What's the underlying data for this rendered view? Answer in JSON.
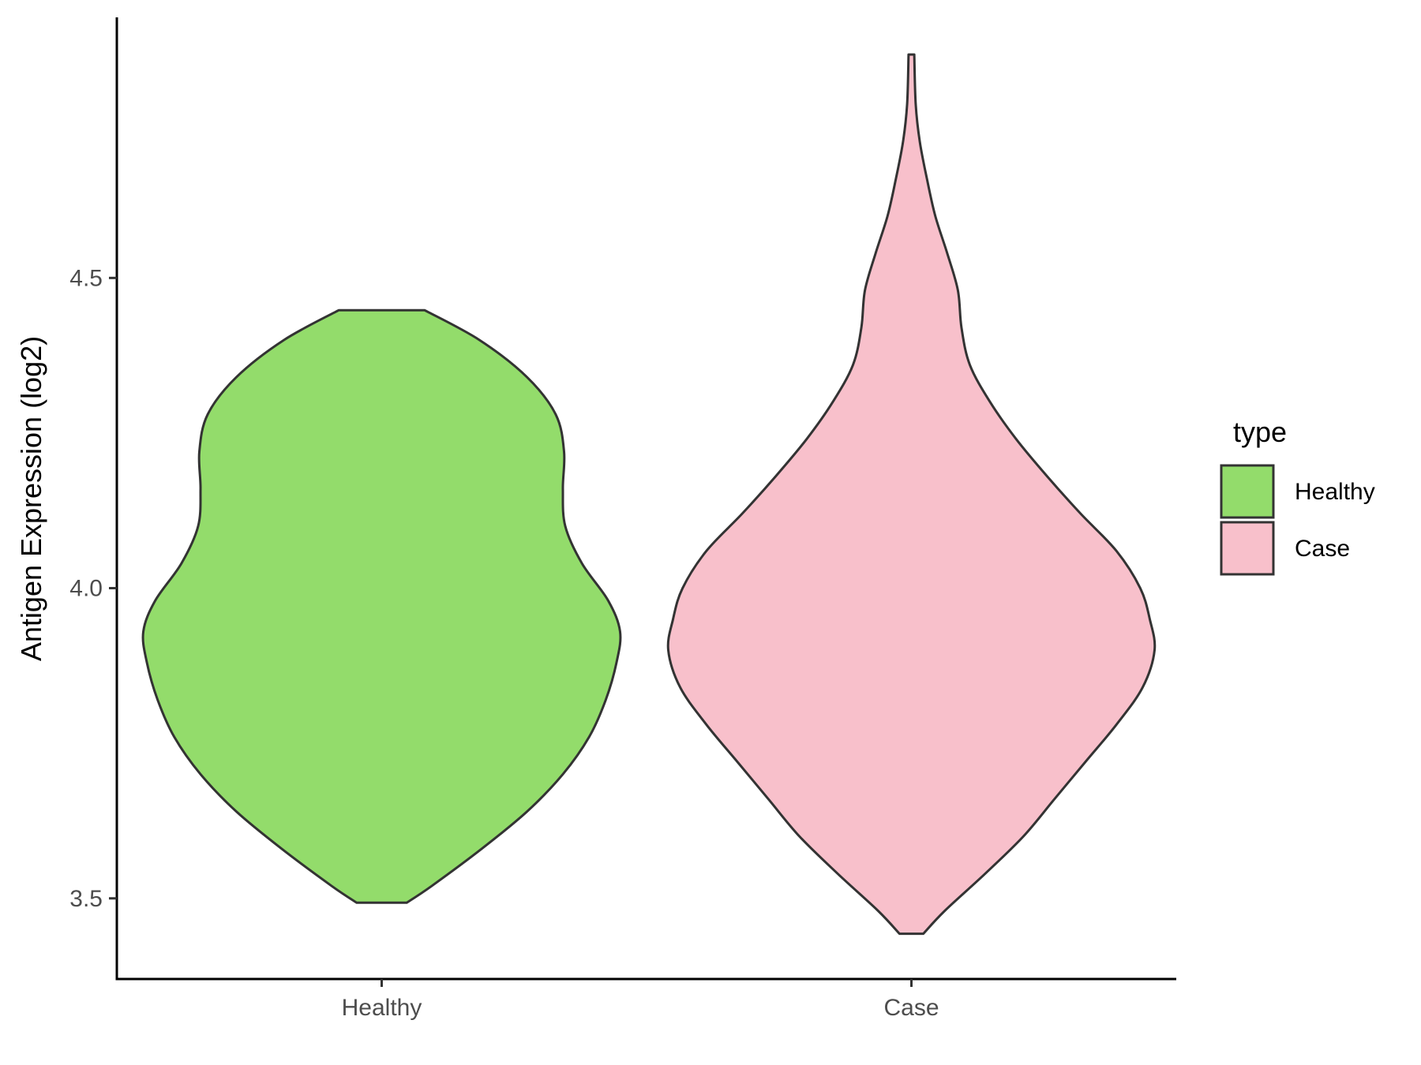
{
  "chart_data": {
    "type": "violin",
    "title": "",
    "xlabel": "",
    "ylabel": "Antigen Expression (log2)",
    "ylim": [
      3.37,
      4.92
    ],
    "yticks": [
      3.5,
      4.0,
      4.5
    ],
    "ytick_labels": [
      "3.5",
      "4.0",
      "4.5"
    ],
    "categories": [
      "Healthy",
      "Case"
    ],
    "legend": {
      "title": "type",
      "position": "right",
      "entries": [
        {
          "label": "Healthy",
          "color": "#93dc6b"
        },
        {
          "label": "Case",
          "color": "#f8c0cb"
        }
      ]
    },
    "series": [
      {
        "name": "Healthy",
        "color": "#93dc6b",
        "y_min": 3.493,
        "y_max": 4.448,
        "density_profile": [
          [
            3.493,
            0.105
          ],
          [
            3.52,
            0.21
          ],
          [
            3.58,
            0.42
          ],
          [
            3.64,
            0.61
          ],
          [
            3.7,
            0.76
          ],
          [
            3.76,
            0.87
          ],
          [
            3.82,
            0.94
          ],
          [
            3.88,
            0.985
          ],
          [
            3.93,
            1.0
          ],
          [
            3.98,
            0.95
          ],
          [
            4.04,
            0.84
          ],
          [
            4.1,
            0.77
          ],
          [
            4.16,
            0.76
          ],
          [
            4.22,
            0.765
          ],
          [
            4.28,
            0.73
          ],
          [
            4.34,
            0.61
          ],
          [
            4.4,
            0.41
          ],
          [
            4.448,
            0.18
          ]
        ]
      },
      {
        "name": "Case",
        "color": "#f8c0cb",
        "y_min": 3.443,
        "y_max": 4.86,
        "density_profile": [
          [
            3.443,
            0.05
          ],
          [
            3.48,
            0.14
          ],
          [
            3.54,
            0.31
          ],
          [
            3.6,
            0.47
          ],
          [
            3.66,
            0.6
          ],
          [
            3.72,
            0.73
          ],
          [
            3.78,
            0.86
          ],
          [
            3.84,
            0.97
          ],
          [
            3.9,
            1.02
          ],
          [
            3.95,
            1.0
          ],
          [
            4.0,
            0.96
          ],
          [
            4.06,
            0.86
          ],
          [
            4.12,
            0.71
          ],
          [
            4.18,
            0.57
          ],
          [
            4.24,
            0.44
          ],
          [
            4.3,
            0.33
          ],
          [
            4.36,
            0.245
          ],
          [
            4.42,
            0.21
          ],
          [
            4.48,
            0.195
          ],
          [
            4.54,
            0.15
          ],
          [
            4.6,
            0.1
          ],
          [
            4.66,
            0.065
          ],
          [
            4.72,
            0.035
          ],
          [
            4.78,
            0.018
          ],
          [
            4.86,
            0.012
          ]
        ]
      }
    ]
  }
}
